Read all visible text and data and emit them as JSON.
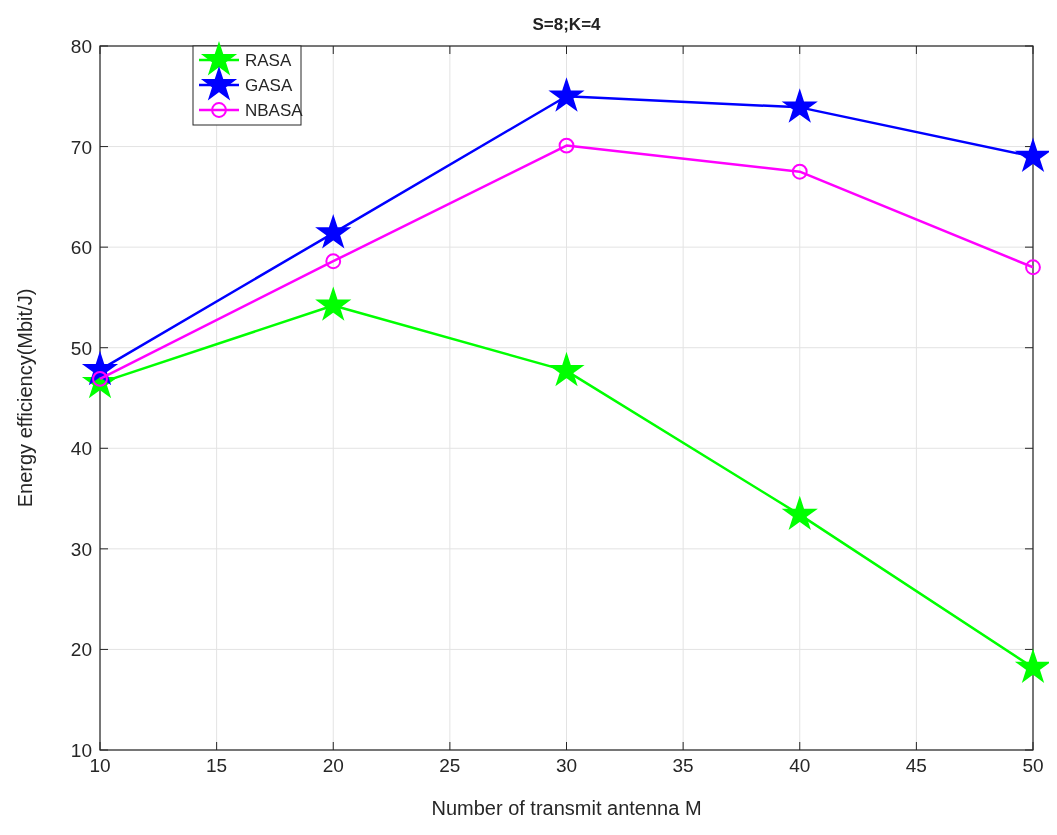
{
  "chart_data": {
    "type": "line",
    "title": "S=8;K=4",
    "xlabel": "Number of transmit antenna M",
    "ylabel": "Energy efficiency(Mbit/J)",
    "x": [
      10,
      20,
      30,
      40,
      50
    ],
    "series": [
      {
        "name": "RASA",
        "color": "#00ff00",
        "marker": "star",
        "values": [
          46.5,
          54.2,
          47.7,
          33.4,
          18.2
        ]
      },
      {
        "name": "GASA",
        "color": "#0000ff",
        "marker": "star",
        "values": [
          47.8,
          61.4,
          75.0,
          73.9,
          69.0
        ]
      },
      {
        "name": "NBASA",
        "color": "#ff00ff",
        "marker": "circle",
        "values": [
          46.9,
          58.6,
          70.1,
          67.5,
          58.0
        ]
      }
    ],
    "xlim": [
      10,
      50
    ],
    "xticks": [
      10,
      15,
      20,
      25,
      30,
      35,
      40,
      45,
      50
    ],
    "ylim": [
      10,
      80
    ],
    "yticks": [
      10,
      20,
      30,
      40,
      50,
      60,
      70,
      80
    ],
    "grid": true,
    "legend": "top left",
    "line_style": "solid"
  }
}
